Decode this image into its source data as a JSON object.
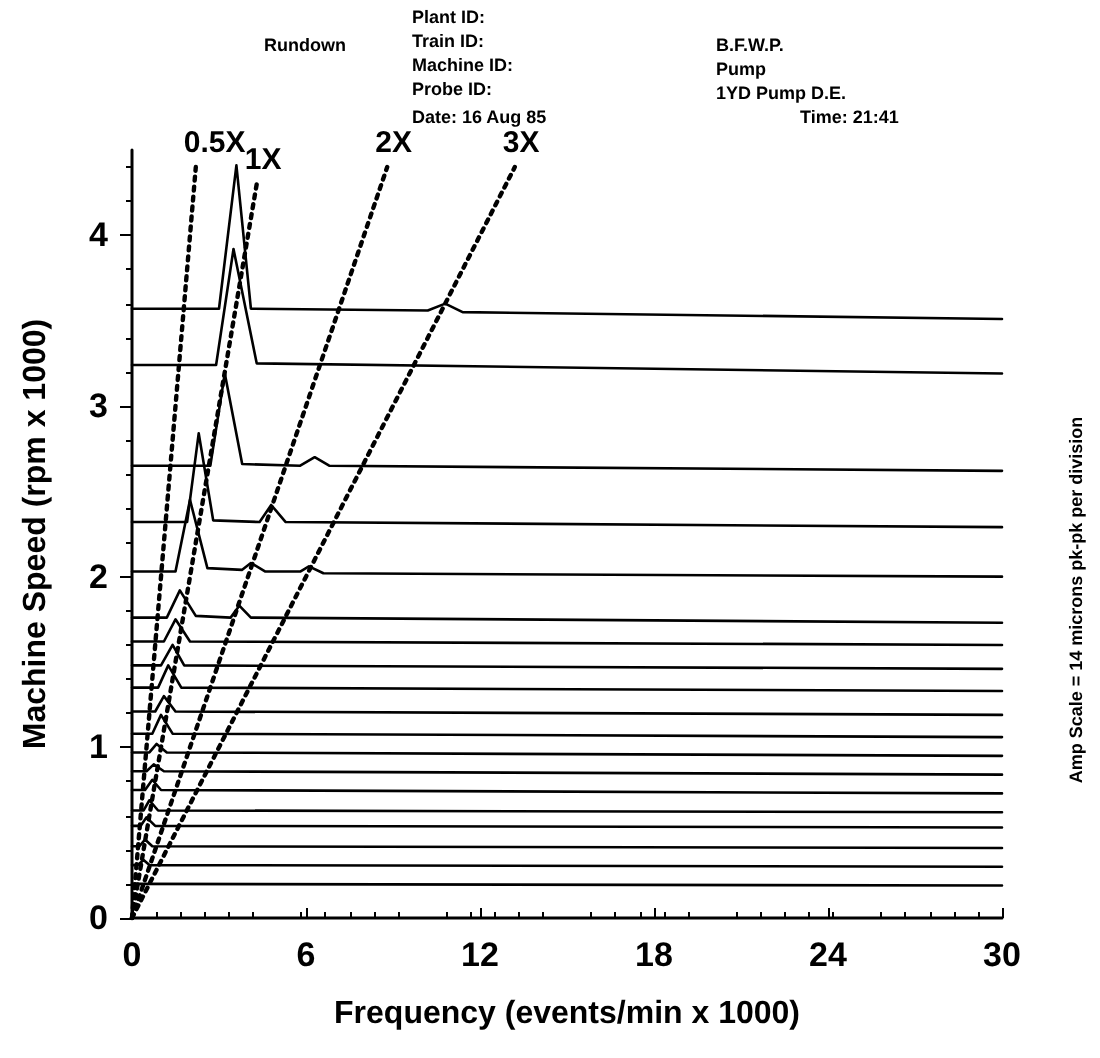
{
  "chart_data": {
    "type": "line",
    "title": "Rundown",
    "xlabel": "Frequency (events/min x 1000)",
    "ylabel": "Machine Speed (rpm x 1000)",
    "annotations": [
      "Plant ID:",
      "Train ID:",
      "Machine ID:",
      "Probe ID:",
      "Date: 16 Aug 85",
      "B.F.W.P.",
      "Pump",
      "1YD Pump D.E.",
      "Time: 21:41",
      "Amp Scale = 14 microns pk-pk per division"
    ],
    "xlim": [
      0,
      30
    ],
    "xticks": [
      0,
      6,
      12,
      18,
      24,
      30
    ],
    "ylim": [
      0,
      4.5
    ],
    "yticks": [
      0,
      1,
      2,
      3,
      4
    ],
    "grid": false,
    "legend": false,
    "marker": "none",
    "line_style": "solid",
    "series": [
      {
        "color": "#000000",
        "x": [
          0,
          3.0,
          3.6,
          4.1,
          10.2,
          10.8,
          11.4,
          30
        ],
        "values": [
          3.57,
          3.57,
          4.41,
          3.57,
          3.56,
          3.6,
          3.55,
          3.51
        ]
      },
      {
        "color": "#000000",
        "x": [
          0,
          2.9,
          3.5,
          4.3,
          30
        ],
        "values": [
          3.24,
          3.24,
          3.92,
          3.25,
          3.19
        ]
      },
      {
        "color": "#000000",
        "x": [
          0,
          2.7,
          3.2,
          3.8,
          5.8,
          6.3,
          6.8,
          30
        ],
        "values": [
          2.65,
          2.65,
          3.19,
          2.66,
          2.65,
          2.7,
          2.65,
          2.62
        ]
      },
      {
        "color": "#000000",
        "x": [
          0,
          1.9,
          2.3,
          2.8,
          4.4,
          4.8,
          5.3,
          30
        ],
        "values": [
          2.32,
          2.32,
          2.84,
          2.33,
          2.32,
          2.42,
          2.32,
          2.29
        ]
      },
      {
        "color": "#000000",
        "x": [
          0,
          1.5,
          2.0,
          2.6,
          3.8,
          4.1,
          4.6,
          5.8,
          6.1,
          6.6,
          30
        ],
        "values": [
          2.03,
          2.03,
          2.45,
          2.05,
          2.04,
          2.08,
          2.03,
          2.03,
          2.06,
          2.02,
          2.0
        ]
      },
      {
        "color": "#000000",
        "x": [
          0,
          1.2,
          1.65,
          2.2,
          3.4,
          3.7,
          4.1,
          30
        ],
        "values": [
          1.76,
          1.76,
          1.92,
          1.77,
          1.76,
          1.83,
          1.76,
          1.73
        ]
      },
      {
        "color": "#000000",
        "x": [
          0,
          1.1,
          1.5,
          2.0,
          30
        ],
        "values": [
          1.62,
          1.62,
          1.75,
          1.62,
          1.6
        ]
      },
      {
        "color": "#000000",
        "x": [
          0,
          1.0,
          1.4,
          1.8,
          30
        ],
        "values": [
          1.48,
          1.48,
          1.6,
          1.48,
          1.46
        ]
      },
      {
        "color": "#000000",
        "x": [
          0,
          0.9,
          1.25,
          1.7,
          30
        ],
        "values": [
          1.35,
          1.35,
          1.48,
          1.35,
          1.33
        ]
      },
      {
        "color": "#000000",
        "x": [
          0,
          0.8,
          1.1,
          1.5,
          30
        ],
        "values": [
          1.21,
          1.21,
          1.3,
          1.21,
          1.19
        ]
      },
      {
        "color": "#000000",
        "x": [
          0,
          0.7,
          1.0,
          1.4,
          30
        ],
        "values": [
          1.08,
          1.08,
          1.19,
          1.08,
          1.06
        ]
      },
      {
        "color": "#000000",
        "x": [
          0,
          0.6,
          0.85,
          1.2,
          30
        ],
        "values": [
          0.97,
          0.97,
          1.02,
          0.97,
          0.95
        ]
      },
      {
        "color": "#000000",
        "x": [
          0,
          0.5,
          0.75,
          1.1,
          30
        ],
        "values": [
          0.86,
          0.86,
          0.9,
          0.86,
          0.84
        ]
      },
      {
        "color": "#000000",
        "x": [
          0,
          0.45,
          0.7,
          1.0,
          30
        ],
        "values": [
          0.75,
          0.75,
          0.81,
          0.75,
          0.73
        ]
      },
      {
        "color": "#000000",
        "x": [
          0,
          0.4,
          0.6,
          0.9,
          30
        ],
        "values": [
          0.63,
          0.63,
          0.69,
          0.63,
          0.62
        ]
      },
      {
        "color": "#000000",
        "x": [
          0,
          0.3,
          0.5,
          0.8,
          30
        ],
        "values": [
          0.54,
          0.54,
          0.59,
          0.54,
          0.53
        ]
      },
      {
        "color": "#000000",
        "x": [
          0,
          0.25,
          0.45,
          0.7,
          30
        ],
        "values": [
          0.42,
          0.42,
          0.46,
          0.42,
          0.41
        ]
      },
      {
        "color": "#000000",
        "x": [
          0,
          0.2,
          0.4,
          0.6,
          30
        ],
        "values": [
          0.31,
          0.31,
          0.34,
          0.31,
          0.3
        ]
      },
      {
        "color": "#000000",
        "x": [
          0,
          0.2,
          30
        ],
        "values": [
          0.2,
          0.2,
          0.19
        ]
      },
      {
        "name": "0.5X",
        "color": "#000000",
        "line_style": "dotted",
        "x": [
          0,
          2.2
        ],
        "values": [
          0,
          4.4
        ]
      },
      {
        "name": "1X",
        "color": "#000000",
        "line_style": "dotted",
        "x": [
          0,
          4.3
        ],
        "values": [
          0,
          4.3
        ]
      },
      {
        "name": "2X",
        "color": "#000000",
        "line_style": "dotted",
        "x": [
          0,
          8.8
        ],
        "values": [
          0,
          4.4
        ]
      },
      {
        "name": "3X",
        "color": "#000000",
        "line_style": "dotted",
        "x": [
          0,
          13.2
        ],
        "values": [
          0,
          4.4
        ]
      }
    ]
  }
}
